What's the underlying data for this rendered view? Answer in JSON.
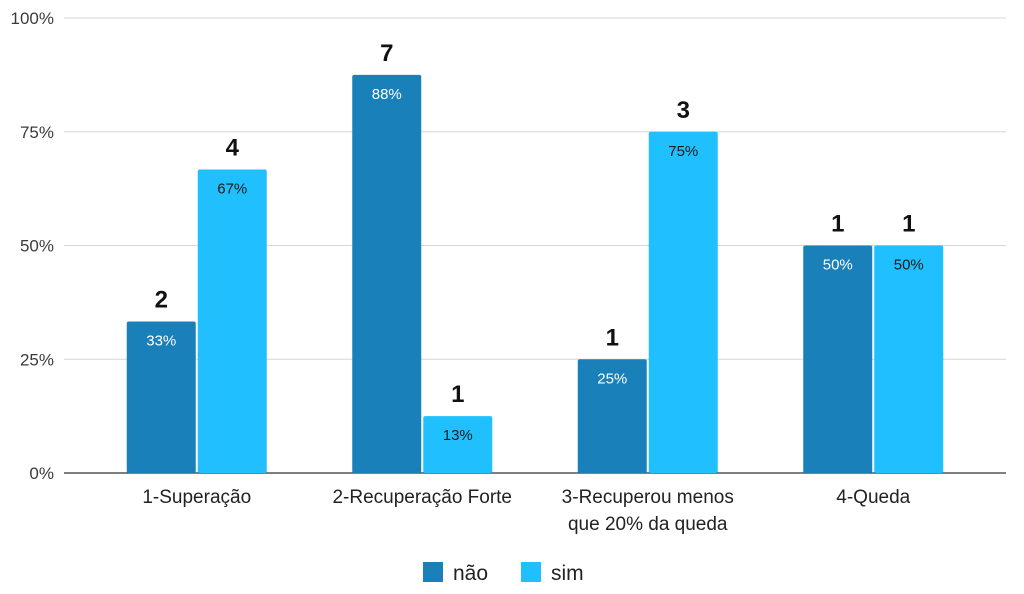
{
  "chart_data": {
    "type": "bar",
    "title": "",
    "xlabel": "",
    "ylabel": "",
    "ylim": [
      0,
      100
    ],
    "y_ticks": [
      "0%",
      "25%",
      "50%",
      "75%",
      "100%"
    ],
    "y_tick_values": [
      0,
      25,
      50,
      75,
      100
    ],
    "grid": true,
    "legend_position": "bottom",
    "categories": [
      [
        "1-Superação"
      ],
      [
        "2-Recuperação Forte"
      ],
      [
        "3-Recuperou menos",
        "que 20% da queda"
      ],
      [
        "4-Queda"
      ]
    ],
    "series": [
      {
        "name": "não",
        "color": "#1a80b9",
        "label_color": "#ffffff",
        "values": [
          33.3,
          87.5,
          25,
          50
        ],
        "labels": [
          "33%",
          "88%",
          "25%",
          "50%"
        ],
        "counts": [
          "2",
          "7",
          "1",
          "1"
        ]
      },
      {
        "name": "sim",
        "color": "#1fc0fd",
        "label_color": "#1a1a1a",
        "values": [
          66.7,
          12.5,
          75,
          50
        ],
        "labels": [
          "67%",
          "13%",
          "75%",
          "50%"
        ],
        "counts": [
          "4",
          "1",
          "3",
          "1"
        ]
      }
    ]
  }
}
